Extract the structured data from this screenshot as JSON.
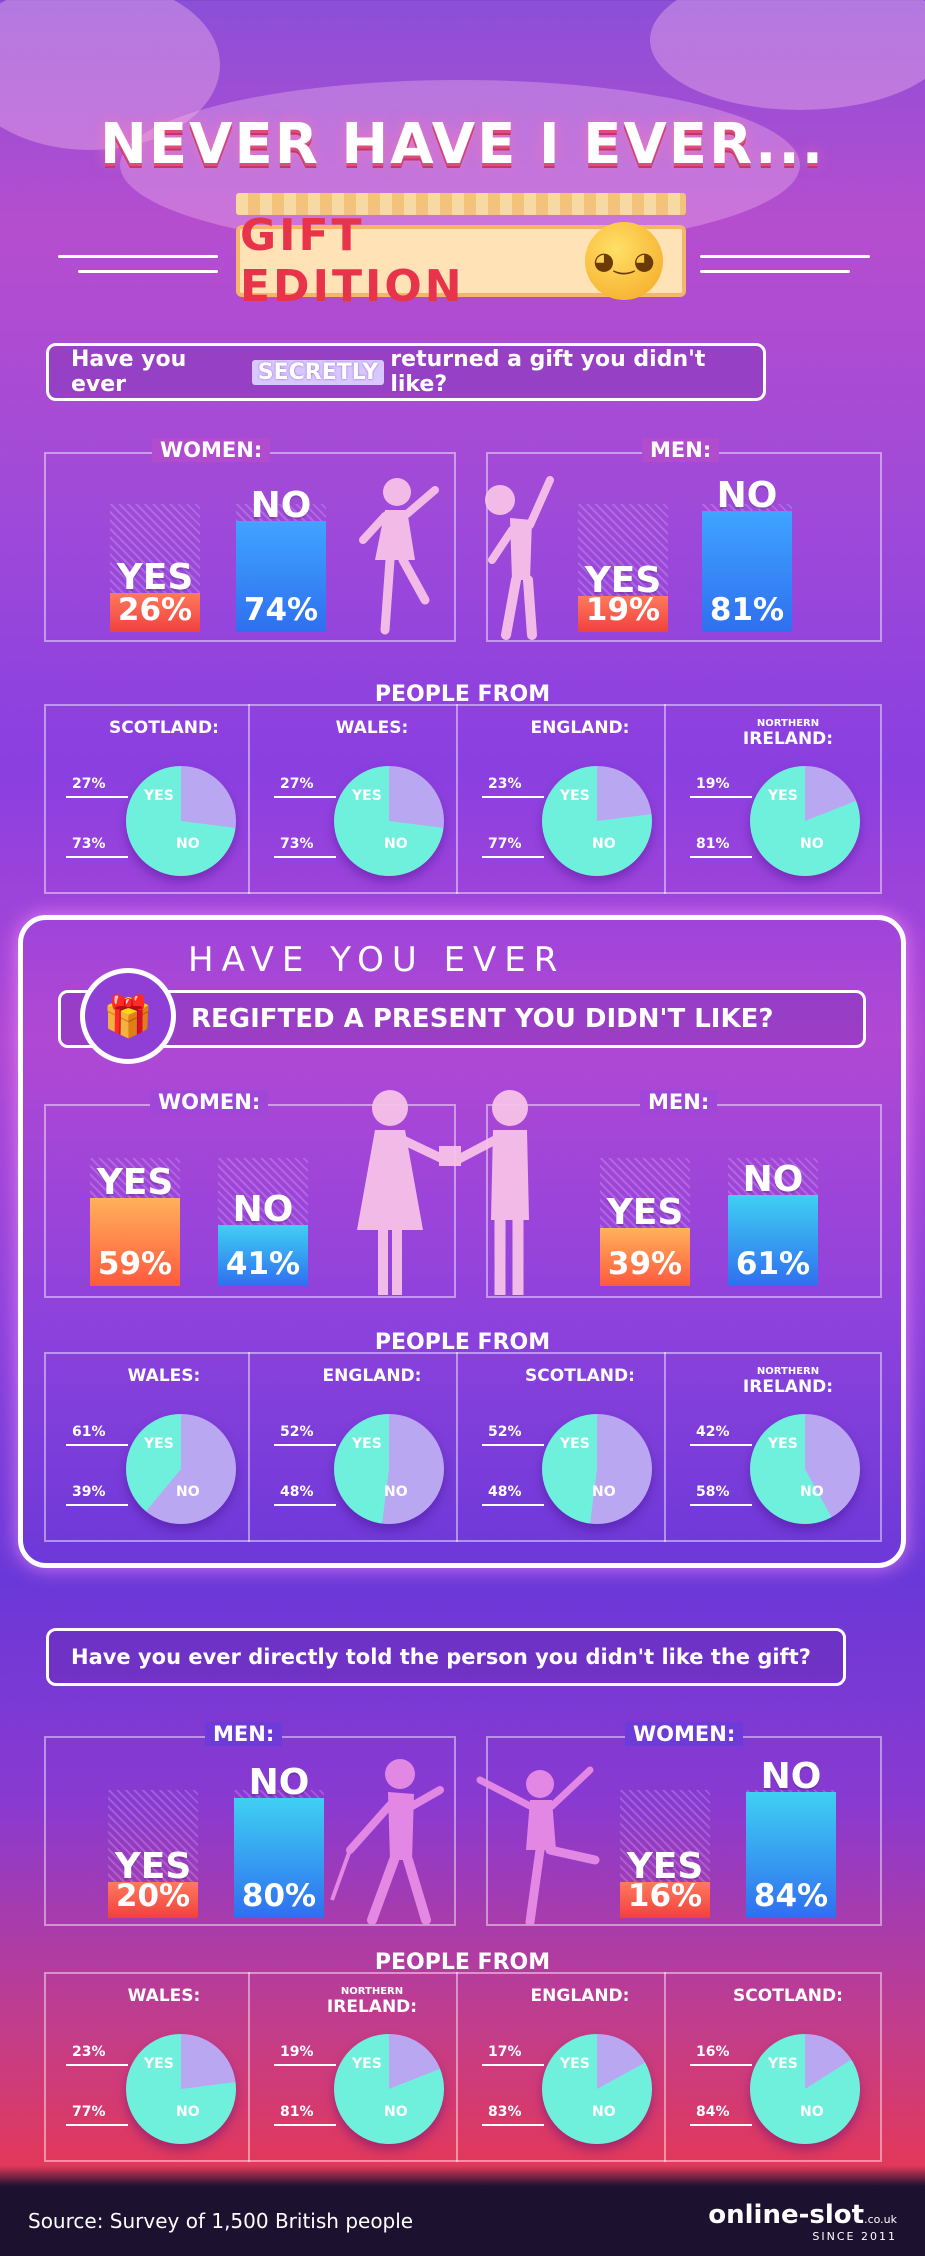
{
  "title": "NEVER HAVE I EVER...",
  "edition": "GIFT EDITION",
  "section1": {
    "question_pre": "Have you ever",
    "question_tag": "SECRETLY",
    "question_post": "returned a gift you didn't like?",
    "women_label": "WOMEN:",
    "men_label": "MEN:",
    "women": {
      "yes": "26%",
      "no": "74%",
      "yes_value": 26,
      "no_value": 74
    },
    "men": {
      "yes": "19%",
      "no": "81%",
      "yes_value": 19,
      "no_value": 81
    },
    "people_from": "PEOPLE FROM",
    "regions": [
      {
        "name": "SCOTLAND:",
        "small": "",
        "yes": "27%",
        "no": "73%",
        "yes_value": 27
      },
      {
        "name": "WALES:",
        "small": "",
        "yes": "27%",
        "no": "73%",
        "yes_value": 27
      },
      {
        "name": "ENGLAND:",
        "small": "",
        "yes": "23%",
        "no": "77%",
        "yes_value": 23
      },
      {
        "name": "IRELAND:",
        "small": "NORTHERN",
        "yes": "19%",
        "no": "81%",
        "yes_value": 19
      }
    ]
  },
  "section2": {
    "heading": "HAVE YOU EVER",
    "question": "REGIFTED A PRESENT YOU DIDN'T LIKE?",
    "women_label": "WOMEN:",
    "men_label": "MEN:",
    "women": {
      "yes": "59%",
      "no": "41%",
      "yes_value": 59,
      "no_value": 41
    },
    "men": {
      "yes": "39%",
      "no": "61%",
      "yes_value": 39,
      "no_value": 61
    },
    "people_from": "PEOPLE FROM",
    "regions": [
      {
        "name": "WALES:",
        "small": "",
        "yes": "61%",
        "no": "39%",
        "yes_value": 61
      },
      {
        "name": "ENGLAND:",
        "small": "",
        "yes": "52%",
        "no": "48%",
        "yes_value": 52
      },
      {
        "name": "SCOTLAND:",
        "small": "",
        "yes": "52%",
        "no": "48%",
        "yes_value": 52
      },
      {
        "name": "IRELAND:",
        "small": "NORTHERN",
        "yes": "42%",
        "no": "58%",
        "yes_value": 42
      }
    ]
  },
  "section3": {
    "question": "Have you ever directly told the person you didn't like the gift?",
    "men_label": "MEN:",
    "women_label": "WOMEN:",
    "men": {
      "yes": "20%",
      "no": "80%",
      "yes_value": 20,
      "no_value": 80
    },
    "women": {
      "yes": "16%",
      "no": "84%",
      "yes_value": 16,
      "no_value": 84
    },
    "people_from": "PEOPLE FROM",
    "regions": [
      {
        "name": "WALES:",
        "small": "",
        "yes": "23%",
        "no": "77%",
        "yes_value": 23
      },
      {
        "name": "IRELAND:",
        "small": "NORTHERN",
        "yes": "19%",
        "no": "81%",
        "yes_value": 19
      },
      {
        "name": "ENGLAND:",
        "small": "",
        "yes": "17%",
        "no": "83%",
        "yes_value": 17
      },
      {
        "name": "SCOTLAND:",
        "small": "",
        "yes": "16%",
        "no": "84%",
        "yes_value": 16
      }
    ]
  },
  "labels": {
    "yes": "YES",
    "no": "NO"
  },
  "footer": {
    "source": "Source: Survey of 1,500 British people",
    "logo": "online-slot",
    "logo_suffix": ".co.uk",
    "since": "SINCE 2011"
  },
  "colors": {
    "pie_yes": "#b9a7f2",
    "pie_no": "#6ef0dd",
    "bar_no": "#2f7df0",
    "bar_yes": "#f04a4a"
  }
}
